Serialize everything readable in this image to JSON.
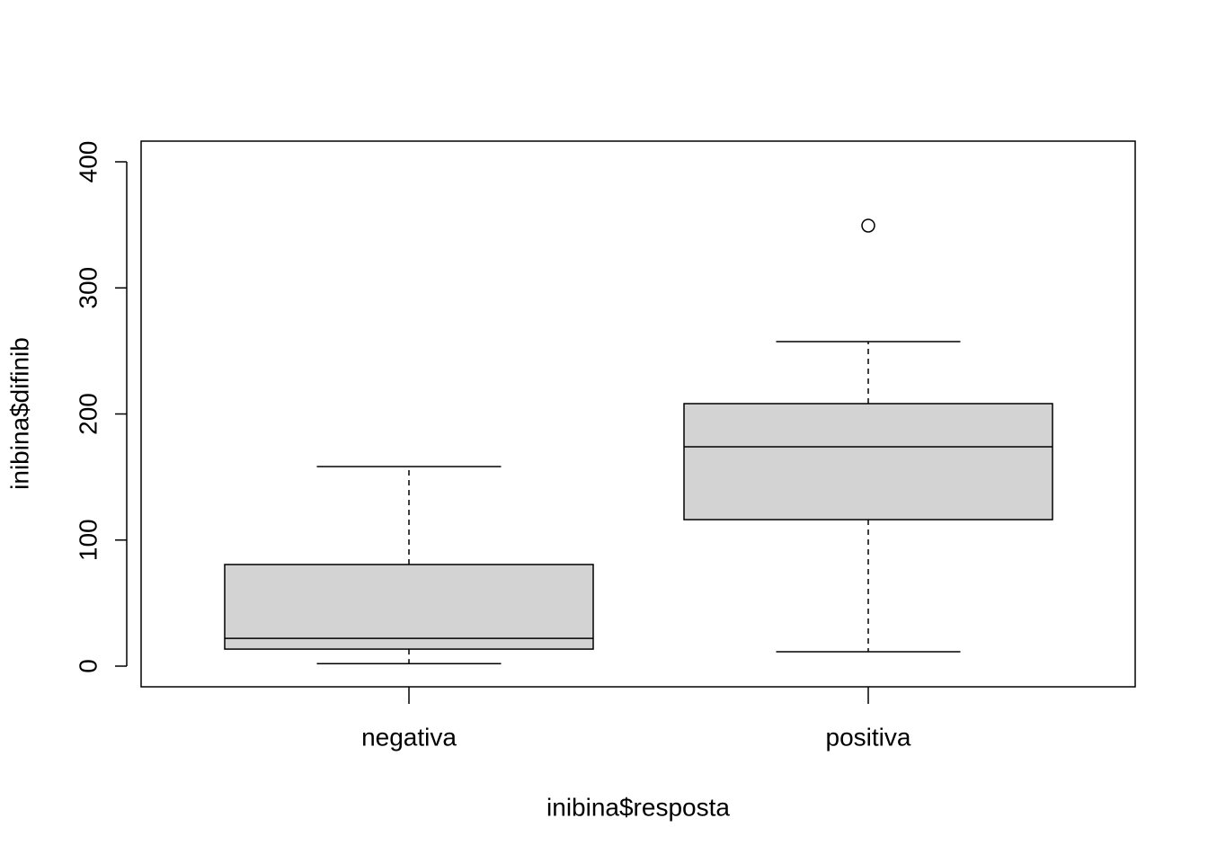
{
  "chart_data": {
    "type": "box",
    "x_label": "inibina$resposta",
    "y_label": "inibina$difinib",
    "categories": [
      "negativa",
      "positiva"
    ],
    "min": [
      2,
      11.4
    ],
    "q1": [
      13.5,
      116.2
    ],
    "median": [
      22,
      174
    ],
    "q3": [
      80.6,
      208.2
    ],
    "max": [
      158.3,
      257.4
    ],
    "outliers": [
      [],
      [
        349.4
      ]
    ],
    "color": "#d3d3d3",
    "ylim": [
      -16.4,
      416.4
    ],
    "yticks": [
      0,
      100,
      200,
      300,
      400
    ]
  }
}
